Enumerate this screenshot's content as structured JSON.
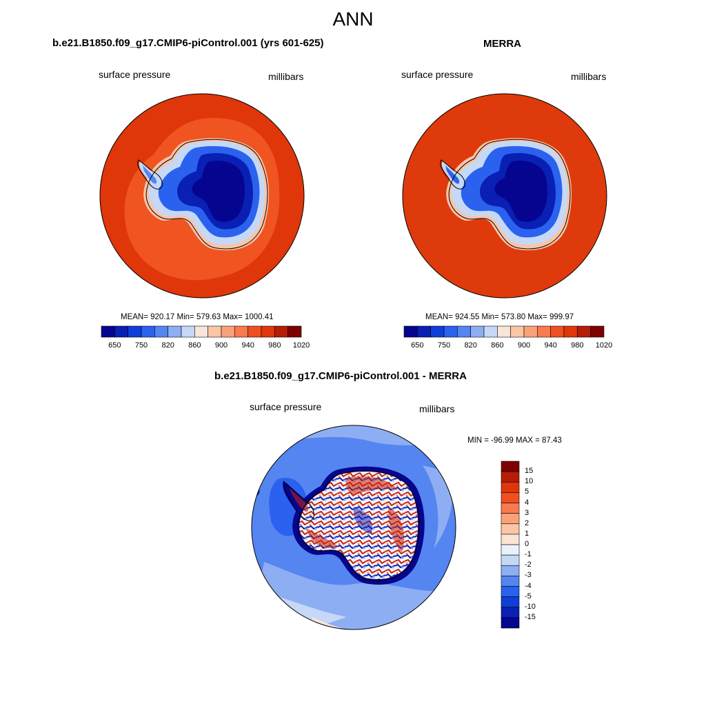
{
  "title": "ANN",
  "panels": [
    {
      "title": "b.e21.B1850.f09_g17.CMIP6-piControl.001 (yrs 601-625)",
      "variable": "surface pressure",
      "units": "millibars",
      "stats": "MEAN= 920.17  Min= 579.63  Max= 1000.41"
    },
    {
      "title": "MERRA",
      "variable": "surface pressure",
      "units": "millibars",
      "stats": "MEAN= 924.55  Min= 573.80  Max= 999.97"
    },
    {
      "title": "b.e21.B1850.f09_g17.CMIP6-piControl.001 - MERRA",
      "variable": "surface pressure",
      "units": "millibars",
      "stats": "MIN = -96.99 MAX =  87.43"
    }
  ],
  "colorbar_abs": {
    "colors": [
      "#05058f",
      "#0a1fb4",
      "#0f3fd9",
      "#2a62ef",
      "#5585f0",
      "#8eaef3",
      "#c5d8f6",
      "#f9e6d9",
      "#fbc6a6",
      "#f9a27a",
      "#f97a4e",
      "#f04f20",
      "#df360a",
      "#b51d06",
      "#7f0000"
    ],
    "tick_labels": [
      "650",
      "750",
      "820",
      "860",
      "900",
      "940",
      "980",
      "1020"
    ]
  },
  "colorbar_diff": {
    "colors": [
      "#7f0000",
      "#b51d06",
      "#df360a",
      "#f04f20",
      "#f97a4e",
      "#f9a27a",
      "#fbc6a6",
      "#fbe4d4",
      "#eaf1fb",
      "#c5d8f6",
      "#8eaef3",
      "#5585f0",
      "#2a62ef",
      "#0f3fd9",
      "#0a1fb4",
      "#05058f"
    ],
    "tick_labels": [
      "15",
      "10",
      "5",
      "4",
      "3",
      "2",
      "1",
      "0",
      "-1",
      "-2",
      "-3",
      "-4",
      "-5",
      "-10",
      "-15"
    ]
  },
  "map_colors": {
    "ocean_model": "#df360a",
    "ocean_model_ring": "#f05420",
    "ocean_obs": "#df3a0c",
    "coast_pale": "#f9c4a8",
    "ice_light": "#c5d8f6",
    "ice_mid": "#2a62ef",
    "ice_deep": "#0a1fb4",
    "ice_core": "#05058f",
    "diff_ocean_dark": "#5585f0",
    "diff_ocean_light": "#8eaef3",
    "diff_pos": "#c8200a",
    "diff_neg": "#0a1fb4"
  }
}
